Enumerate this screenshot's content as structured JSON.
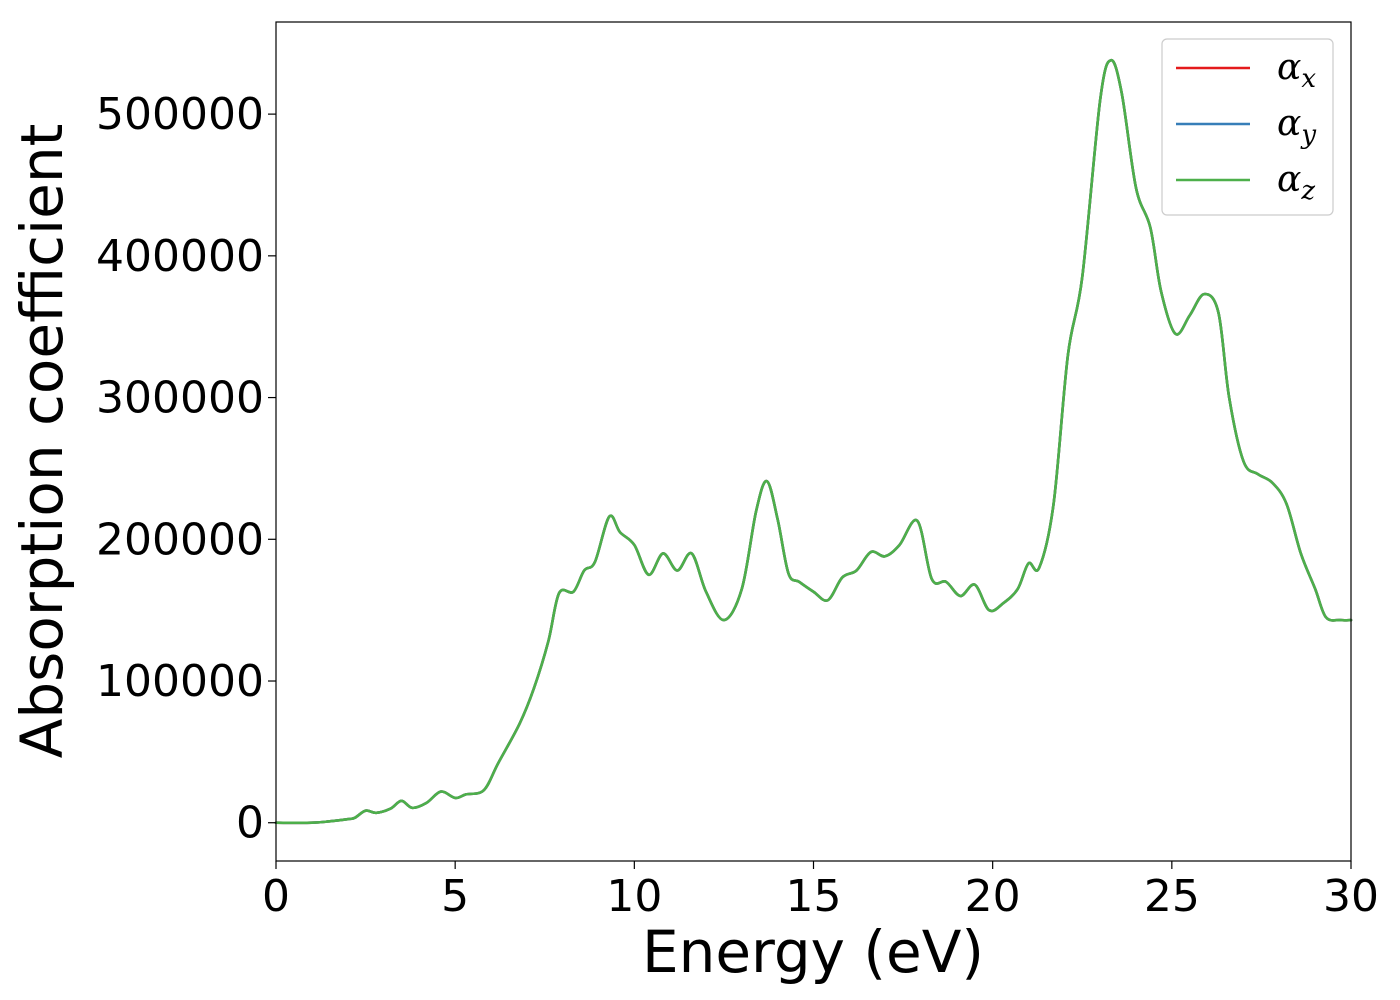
{
  "chart_data": {
    "type": "line",
    "xlabel": "Energy (eV)",
    "ylabel": "Absorption coefficient",
    "xlim": [
      0,
      30
    ],
    "ylim": [
      -27000,
      565000
    ],
    "xticks": [
      0,
      5,
      10,
      15,
      20,
      25,
      30
    ],
    "xtick_labels": [
      "0",
      "5",
      "10",
      "15",
      "20",
      "25",
      "30"
    ],
    "yticks": [
      0,
      100000,
      200000,
      300000,
      400000,
      500000
    ],
    "ytick_labels": [
      "0",
      "100000",
      "200000",
      "300000",
      "400000",
      "500000"
    ],
    "grid": false,
    "legend_position": "top-right",
    "x": [
      0,
      1,
      1.5,
      2,
      2.2,
      2.5,
      2.8,
      3.2,
      3.5,
      3.8,
      4.2,
      4.6,
      5.0,
      5.3,
      5.8,
      6.2,
      6.8,
      7.2,
      7.6,
      7.9,
      8.3,
      8.6,
      8.9,
      9.3,
      9.6,
      10.0,
      10.4,
      10.8,
      11.2,
      11.6,
      12.0,
      12.5,
      13.0,
      13.4,
      13.7,
      14.0,
      14.3,
      14.6,
      15.0,
      15.4,
      15.8,
      16.2,
      16.6,
      17.0,
      17.4,
      17.9,
      18.3,
      18.7,
      19.1,
      19.5,
      19.9,
      20.3,
      20.7,
      21.0,
      21.3,
      21.7,
      22.1,
      22.5,
      23.0,
      23.3,
      23.6,
      24.0,
      24.4,
      24.7,
      25.1,
      25.5,
      25.9,
      26.3,
      26.6,
      27.0,
      27.4,
      27.8,
      28.2,
      28.6,
      29.0,
      29.3,
      29.7,
      30.0
    ],
    "series": [
      {
        "name": "αx",
        "label_main": "α",
        "label_sub": "x",
        "color": "#e41a1c",
        "y": [
          0,
          0,
          1000,
          2500,
          3500,
          8500,
          7000,
          10000,
          15500,
          10500,
          14000,
          22000,
          17500,
          20000,
          23000,
          42000,
          70000,
          95000,
          128000,
          162000,
          163000,
          178000,
          184000,
          216000,
          205000,
          196000,
          175000,
          190000,
          178000,
          190000,
          163000,
          143000,
          165000,
          220000,
          241000,
          214000,
          176000,
          170000,
          163000,
          157000,
          173000,
          178000,
          191000,
          188000,
          196000,
          213000,
          172000,
          170000,
          160000,
          168000,
          150000,
          155000,
          165000,
          183000,
          180000,
          225000,
          330000,
          385000,
          510000,
          538000,
          515000,
          448000,
          420000,
          375000,
          345000,
          358000,
          373000,
          360000,
          300000,
          255000,
          246000,
          240000,
          225000,
          190000,
          165000,
          145000,
          143000,
          143000
        ]
      },
      {
        "name": "αy",
        "label_main": "α",
        "label_sub": "y",
        "color": "#377eb8",
        "y": [
          0,
          0,
          1000,
          2500,
          3500,
          8500,
          7000,
          10000,
          15500,
          10500,
          14000,
          22000,
          17500,
          20000,
          23000,
          42000,
          70000,
          95000,
          128000,
          162000,
          163000,
          178000,
          184000,
          216000,
          205000,
          196000,
          175000,
          190000,
          178000,
          190000,
          163000,
          143000,
          165000,
          220000,
          241000,
          214000,
          176000,
          170000,
          163000,
          157000,
          173000,
          178000,
          191000,
          188000,
          196000,
          213000,
          172000,
          170000,
          160000,
          168000,
          150000,
          155000,
          165000,
          183000,
          180000,
          225000,
          330000,
          385000,
          510000,
          538000,
          515000,
          448000,
          420000,
          375000,
          345000,
          358000,
          373000,
          360000,
          300000,
          255000,
          246000,
          240000,
          225000,
          190000,
          165000,
          145000,
          143000,
          143000
        ]
      },
      {
        "name": "αz",
        "label_main": "α",
        "label_sub": "z",
        "color": "#4daf4a",
        "y": [
          0,
          0,
          1000,
          2500,
          3500,
          8500,
          7000,
          10000,
          15500,
          10500,
          14000,
          22000,
          17500,
          20000,
          23000,
          42000,
          70000,
          95000,
          128000,
          162000,
          163000,
          178000,
          184000,
          216000,
          205000,
          196000,
          175000,
          190000,
          178000,
          190000,
          163000,
          143000,
          165000,
          220000,
          241000,
          214000,
          176000,
          170000,
          163000,
          157000,
          173000,
          178000,
          191000,
          188000,
          196000,
          213000,
          172000,
          170000,
          160000,
          168000,
          150000,
          155000,
          165000,
          183000,
          180000,
          225000,
          330000,
          385000,
          510000,
          538000,
          515000,
          448000,
          420000,
          375000,
          345000,
          358000,
          373000,
          360000,
          300000,
          255000,
          246000,
          240000,
          225000,
          190000,
          165000,
          145000,
          143000,
          143000
        ]
      }
    ]
  }
}
